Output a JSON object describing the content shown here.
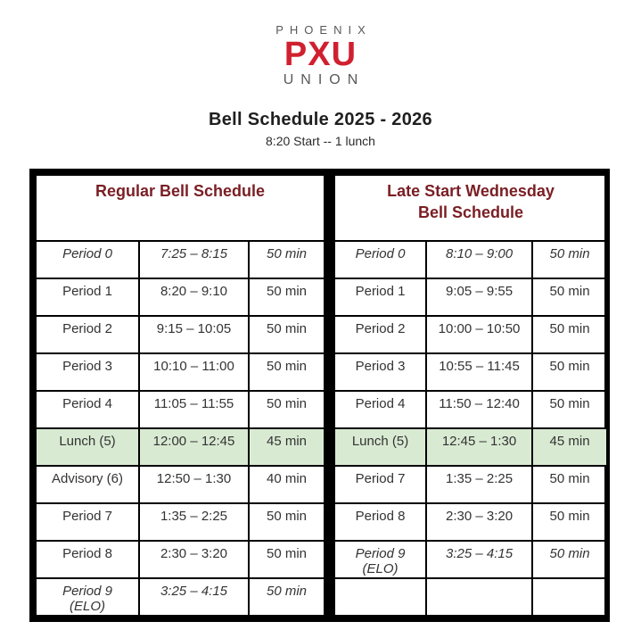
{
  "logo": {
    "top": "PHOENIX",
    "main": "PXU",
    "bottom": "UNION"
  },
  "title": "Bell Schedule 2025 - 2026",
  "subtitle": "8:20 Start -- 1 lunch",
  "colors": {
    "brand_red": "#d0202f",
    "logo_gray": "#58595b",
    "header_maroon": "#7a1e24",
    "lunch_green": "#d9ead3",
    "table_border": "#000000",
    "cell_text": "#333333"
  },
  "tables": [
    {
      "name": "regular",
      "header": "Regular Bell Schedule",
      "rows": [
        {
          "period": "Period 0",
          "time": "7:25 – 8:15",
          "duration": "50 min",
          "italic": true,
          "highlight": false
        },
        {
          "period": "Period 1",
          "time": "8:20 – 9:10",
          "duration": "50 min",
          "italic": false,
          "highlight": false
        },
        {
          "period": "Period 2",
          "time": "9:15 – 10:05",
          "duration": "50 min",
          "italic": false,
          "highlight": false
        },
        {
          "period": "Period 3",
          "time": "10:10 – 11:00",
          "duration": "50 min",
          "italic": false,
          "highlight": false
        },
        {
          "period": "Period 4",
          "time": "11:05 – 11:55",
          "duration": "50 min",
          "italic": false,
          "highlight": false
        },
        {
          "period": "Lunch (5)",
          "time": "12:00 – 12:45",
          "duration": "45 min",
          "italic": false,
          "highlight": true
        },
        {
          "period": "Advisory (6)",
          "time": "12:50 – 1:30",
          "duration": "40 min",
          "italic": false,
          "highlight": false
        },
        {
          "period": "Period 7",
          "time": "1:35 – 2:25",
          "duration": "50 min",
          "italic": false,
          "highlight": false
        },
        {
          "period": "Period 8",
          "time": "2:30 – 3:20",
          "duration": "50 min",
          "italic": false,
          "highlight": false
        },
        {
          "period": "Period 9\n(ELO)",
          "time": "3:25 – 4:15",
          "duration": "50 min",
          "italic": true,
          "highlight": false
        }
      ]
    },
    {
      "name": "late-start-wednesday",
      "header": "Late Start Wednesday\nBell Schedule",
      "rows": [
        {
          "period": "Period 0",
          "time": "8:10 – 9:00",
          "duration": "50 min",
          "italic": true,
          "highlight": false
        },
        {
          "period": "Period 1",
          "time": "9:05 – 9:55",
          "duration": "50 min",
          "italic": false,
          "highlight": false
        },
        {
          "period": "Period 2",
          "time": "10:00 – 10:50",
          "duration": "50 min",
          "italic": false,
          "highlight": false
        },
        {
          "period": "Period 3",
          "time": "10:55 – 11:45",
          "duration": "50 min",
          "italic": false,
          "highlight": false
        },
        {
          "period": "Period 4",
          "time": "11:50 – 12:40",
          "duration": "50 min",
          "italic": false,
          "highlight": false
        },
        {
          "period": "Lunch (5)",
          "time": "12:45 – 1:30",
          "duration": "45 min",
          "italic": false,
          "highlight": true
        },
        {
          "period": "Period 7",
          "time": "1:35 – 2:25",
          "duration": "50 min",
          "italic": false,
          "highlight": false
        },
        {
          "period": "Period 8",
          "time": "2:30 – 3:20",
          "duration": "50 min",
          "italic": false,
          "highlight": false
        },
        {
          "period": "Period 9\n(ELO)",
          "time": "3:25 – 4:15",
          "duration": "50 min",
          "italic": true,
          "highlight": false
        },
        {
          "period": "",
          "time": "",
          "duration": "",
          "italic": false,
          "highlight": false
        }
      ]
    }
  ]
}
